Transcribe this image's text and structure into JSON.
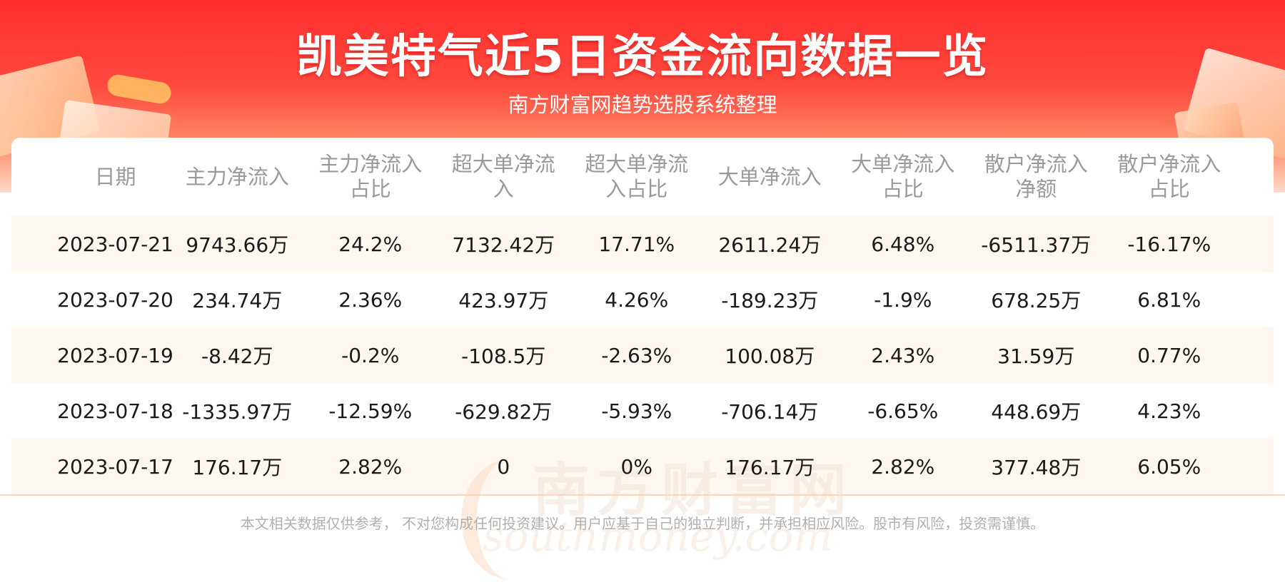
{
  "header": {
    "title": "凯美特气近5日资金流向数据一览",
    "subtitle": "南方财富网趋势选股系统整理"
  },
  "table": {
    "columns": [
      "日期",
      "主力净流入",
      "主力净流入\n占比",
      "超大单净流\n入",
      "超大单净流\n入占比",
      "大单净流入",
      "大单净流入\n占比",
      "散户净流入\n净额",
      "散户净流入\n占比"
    ],
    "rows": [
      [
        "2023-07-21",
        "9743.66万",
        "24.2%",
        "7132.42万",
        "17.71%",
        "2611.24万",
        "6.48%",
        "-6511.37万",
        "-16.17%"
      ],
      [
        "2023-07-20",
        "234.74万",
        "2.36%",
        "423.97万",
        "4.26%",
        "-189.23万",
        "-1.9%",
        "678.25万",
        "6.81%"
      ],
      [
        "2023-07-19",
        "-8.42万",
        "-0.2%",
        "-108.5万",
        "-2.63%",
        "100.08万",
        "2.43%",
        "31.59万",
        "0.77%"
      ],
      [
        "2023-07-18",
        "-1335.97万",
        "-12.59%",
        "-629.82万",
        "-5.93%",
        "-706.14万",
        "-6.65%",
        "448.69万",
        "4.23%"
      ],
      [
        "2023-07-17",
        "176.17万",
        "2.82%",
        "0",
        "0%",
        "176.17万",
        "2.82%",
        "377.48万",
        "6.05%"
      ]
    ]
  },
  "watermark": {
    "cn": "南方财富网",
    "en": "southmoney.com"
  },
  "footer": {
    "disclaimer": "本文相关数据仅供参考， 不对您构成任何投资建议。用户应基于自己的独立判断，并承担相应风险。股市有风险，投资需谨慎。"
  },
  "colors": {
    "banner_red": "#ff2d2d",
    "row_stripe": "#fff7f0",
    "header_text": "#9a9a9a"
  }
}
